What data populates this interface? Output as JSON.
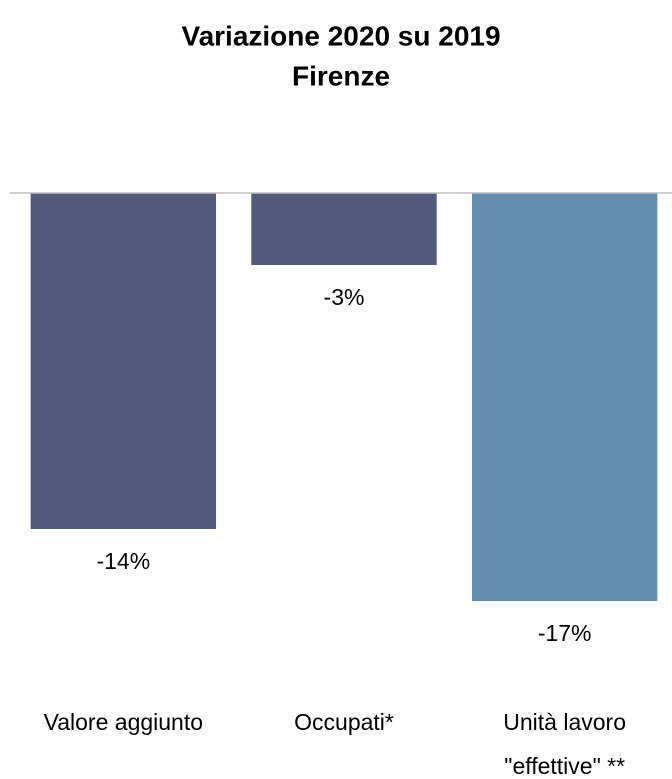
{
  "chart_data": {
    "type": "bar",
    "title": "Variazione 2020 su 2019",
    "subtitle": "Firenze",
    "categories": [
      "Valore aggiunto",
      "Occupati*",
      "Unità lavoro \"effettive\" **"
    ],
    "values": [
      -14,
      -3,
      -17
    ],
    "value_labels": [
      "-14%",
      "-3%",
      "-17%"
    ],
    "colors": [
      "#525a7c",
      "#525a7c",
      "#648cb0"
    ],
    "ylim": [
      -20,
      0
    ]
  }
}
